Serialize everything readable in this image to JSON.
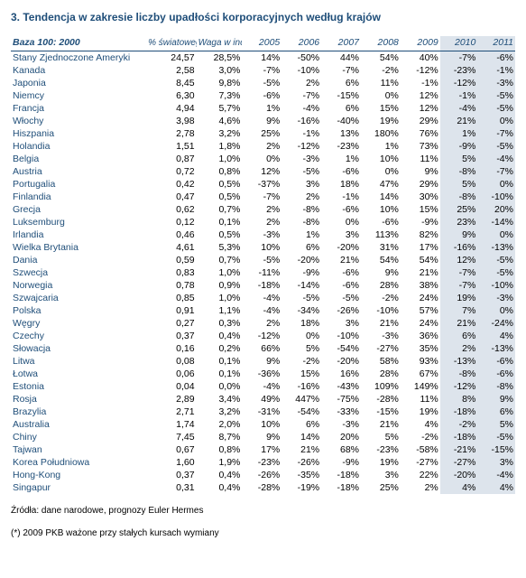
{
  "title": "3. Tendencja w zakresie liczby upadłości korporacyjnych według krajów",
  "header": {
    "base": "Baza 100: 2000",
    "gdp": "% światowego PKB(*)",
    "weight": "Waga w indeksie",
    "years": [
      "2005",
      "2006",
      "2007",
      "2008",
      "2009",
      "2010",
      "2011"
    ]
  },
  "rows": [
    {
      "country": "Stany Zjednoczone Ameryki",
      "gdp": "24,57",
      "weight": "28,5%",
      "v": [
        "14%",
        "-50%",
        "44%",
        "54%",
        "40%",
        "-7%",
        "-6%"
      ]
    },
    {
      "country": "Kanada",
      "gdp": "2,58",
      "weight": "3,0%",
      "v": [
        "-7%",
        "-10%",
        "-7%",
        "-2%",
        "-12%",
        "-23%",
        "-1%"
      ]
    },
    {
      "country": "Japonia",
      "gdp": "8,45",
      "weight": "9,8%",
      "v": [
        "-5%",
        "2%",
        "6%",
        "11%",
        "-1%",
        "-12%",
        "-3%"
      ]
    },
    {
      "country": "Niemcy",
      "gdp": "6,30",
      "weight": "7,3%",
      "v": [
        "-6%",
        "-7%",
        "-15%",
        "0%",
        "12%",
        "-1%",
        "-5%"
      ]
    },
    {
      "country": "Francja",
      "gdp": "4,94",
      "weight": "5,7%",
      "v": [
        "1%",
        "-4%",
        "6%",
        "15%",
        "12%",
        "-4%",
        "-5%"
      ]
    },
    {
      "country": "Włochy",
      "gdp": "3,98",
      "weight": "4,6%",
      "v": [
        "9%",
        "-16%",
        "-40%",
        "19%",
        "29%",
        "21%",
        "0%"
      ]
    },
    {
      "country": "Hiszpania",
      "gdp": "2,78",
      "weight": "3,2%",
      "v": [
        "25%",
        "-1%",
        "13%",
        "180%",
        "76%",
        "1%",
        "-7%"
      ]
    },
    {
      "country": "Holandia",
      "gdp": "1,51",
      "weight": "1,8%",
      "v": [
        "2%",
        "-12%",
        "-23%",
        "1%",
        "73%",
        "-9%",
        "-5%"
      ]
    },
    {
      "country": "Belgia",
      "gdp": "0,87",
      "weight": "1,0%",
      "v": [
        "0%",
        "-3%",
        "1%",
        "10%",
        "11%",
        "5%",
        "-4%"
      ]
    },
    {
      "country": "Austria",
      "gdp": "0,72",
      "weight": "0,8%",
      "v": [
        "12%",
        "-5%",
        "-6%",
        "0%",
        "9%",
        "-8%",
        "-7%"
      ]
    },
    {
      "country": "Portugalia",
      "gdp": "0,42",
      "weight": "0,5%",
      "v": [
        "-37%",
        "3%",
        "18%",
        "47%",
        "29%",
        "5%",
        "0%"
      ]
    },
    {
      "country": "Finlandia",
      "gdp": "0,47",
      "weight": "0,5%",
      "v": [
        "-7%",
        "2%",
        "-1%",
        "14%",
        "30%",
        "-8%",
        "-10%"
      ]
    },
    {
      "country": "Grecja",
      "gdp": "0,62",
      "weight": "0,7%",
      "v": [
        "2%",
        "-8%",
        "-6%",
        "10%",
        "15%",
        "25%",
        "20%"
      ]
    },
    {
      "country": "Luksemburg",
      "gdp": "0,12",
      "weight": "0,1%",
      "v": [
        "2%",
        "-8%",
        "0%",
        "-6%",
        "-9%",
        "23%",
        "-14%"
      ]
    },
    {
      "country": "Irlandia",
      "gdp": "0,46",
      "weight": "0,5%",
      "v": [
        "-3%",
        "1%",
        "3%",
        "113%",
        "82%",
        "9%",
        "0%"
      ]
    },
    {
      "country": "Wielka Brytania",
      "gdp": "4,61",
      "weight": "5,3%",
      "v": [
        "10%",
        "6%",
        "-20%",
        "31%",
        "17%",
        "-16%",
        "-13%"
      ]
    },
    {
      "country": "Dania",
      "gdp": "0,59",
      "weight": "0,7%",
      "v": [
        "-5%",
        "-20%",
        "21%",
        "54%",
        "54%",
        "12%",
        "-5%"
      ]
    },
    {
      "country": "Szwecja",
      "gdp": "0,83",
      "weight": "1,0%",
      "v": [
        "-11%",
        "-9%",
        "-6%",
        "9%",
        "21%",
        "-7%",
        "-5%"
      ]
    },
    {
      "country": "Norwegia",
      "gdp": "0,78",
      "weight": "0,9%",
      "v": [
        "-18%",
        "-14%",
        "-6%",
        "28%",
        "38%",
        "-7%",
        "-10%"
      ]
    },
    {
      "country": "Szwajcaria",
      "gdp": "0,85",
      "weight": "1,0%",
      "v": [
        "-4%",
        "-5%",
        "-5%",
        "-2%",
        "24%",
        "19%",
        "-3%"
      ]
    },
    {
      "country": "Polska",
      "gdp": "0,91",
      "weight": "1,1%",
      "v": [
        "-4%",
        "-34%",
        "-26%",
        "-10%",
        "57%",
        "7%",
        "0%"
      ]
    },
    {
      "country": "Węgry",
      "gdp": "0,27",
      "weight": "0,3%",
      "v": [
        "2%",
        "18%",
        "3%",
        "21%",
        "24%",
        "21%",
        "-24%"
      ]
    },
    {
      "country": "Czechy",
      "gdp": "0,37",
      "weight": "0,4%",
      "v": [
        "-12%",
        "0%",
        "-10%",
        "-3%",
        "36%",
        "6%",
        "4%"
      ]
    },
    {
      "country": "Słowacja",
      "gdp": "0,16",
      "weight": "0,2%",
      "v": [
        "66%",
        "5%",
        "-54%",
        "-27%",
        "35%",
        "2%",
        "-13%"
      ]
    },
    {
      "country": "Litwa",
      "gdp": "0,08",
      "weight": "0,1%",
      "v": [
        "9%",
        "-2%",
        "-20%",
        "58%",
        "93%",
        "-13%",
        "-6%"
      ]
    },
    {
      "country": "Łotwa",
      "gdp": "0,06",
      "weight": "0,1%",
      "v": [
        "-36%",
        "15%",
        "16%",
        "28%",
        "67%",
        "-8%",
        "-6%"
      ]
    },
    {
      "country": "Estonia",
      "gdp": "0,04",
      "weight": "0,0%",
      "v": [
        "-4%",
        "-16%",
        "-43%",
        "109%",
        "149%",
        "-12%",
        "-8%"
      ]
    },
    {
      "country": "Rosja",
      "gdp": "2,89",
      "weight": "3,4%",
      "v": [
        "49%",
        "447%",
        "-75%",
        "-28%",
        "11%",
        "8%",
        "9%"
      ]
    },
    {
      "country": "Brazylia",
      "gdp": "2,71",
      "weight": "3,2%",
      "v": [
        "-31%",
        "-54%",
        "-33%",
        "-15%",
        "19%",
        "-18%",
        "6%"
      ]
    },
    {
      "country": "Australia",
      "gdp": "1,74",
      "weight": "2,0%",
      "v": [
        "10%",
        "6%",
        "-3%",
        "21%",
        "4%",
        "-2%",
        "5%"
      ]
    },
    {
      "country": "Chiny",
      "gdp": "7,45",
      "weight": "8,7%",
      "v": [
        "9%",
        "14%",
        "20%",
        "5%",
        "-2%",
        "-18%",
        "-5%"
      ]
    },
    {
      "country": "Tajwan",
      "gdp": "0,67",
      "weight": "0,8%",
      "v": [
        "17%",
        "21%",
        "68%",
        "-23%",
        "-58%",
        "-21%",
        "-15%"
      ]
    },
    {
      "country": "Korea Południowa",
      "gdp": "1,60",
      "weight": "1,9%",
      "v": [
        "-23%",
        "-26%",
        "-9%",
        "19%",
        "-27%",
        "-27%",
        "3%"
      ]
    },
    {
      "country": "Hong-Kong",
      "gdp": "0,37",
      "weight": "0,4%",
      "v": [
        "-26%",
        "-35%",
        "-18%",
        "3%",
        "22%",
        "-20%",
        "-4%"
      ]
    },
    {
      "country": "Singapur",
      "gdp": "0,31",
      "weight": "0,4%",
      "v": [
        "-28%",
        "-19%",
        "-18%",
        "25%",
        "2%",
        "4%",
        "4%"
      ]
    }
  ],
  "footnote1": "Źródła: dane narodowe, prognozy Euler Hermes",
  "footnote2": "(*) 2009 PKB ważone przy stałych kursach wymiany"
}
